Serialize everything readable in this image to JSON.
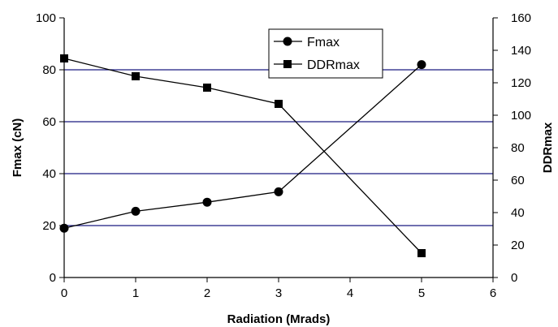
{
  "chart_data": {
    "type": "line",
    "title": "",
    "xlabel": "Radiation (Mrads)",
    "ylabel_left": "Fmax (cN)",
    "ylabel_right": "DDRmax",
    "xlim": [
      0,
      6
    ],
    "ylim_left": [
      0,
      100
    ],
    "ylim_right": [
      0,
      160
    ],
    "x_ticks": [
      "0",
      "1",
      "2",
      "3",
      "4",
      "5",
      "6"
    ],
    "y_left_ticks": [
      "0",
      "20",
      "40",
      "60",
      "80",
      "100"
    ],
    "y_right_ticks": [
      "0",
      "20",
      "40",
      "60",
      "80",
      "100",
      "120",
      "140",
      "160"
    ],
    "grid": "horizontal",
    "legend_position": "top-center",
    "series": [
      {
        "name": "Fmax",
        "axis": "left",
        "marker": "circle",
        "color": "#000000",
        "x": [
          0,
          1,
          2,
          3,
          5
        ],
        "values": [
          19,
          25.5,
          29,
          33,
          82
        ]
      },
      {
        "name": "DDRmax",
        "axis": "right",
        "marker": "square",
        "color": "#000000",
        "x": [
          0,
          1,
          2,
          3,
          5
        ],
        "values": [
          135,
          124,
          117,
          107,
          15
        ]
      }
    ],
    "colors": {
      "gridline": "#1a1a80",
      "line": "#000000"
    }
  }
}
